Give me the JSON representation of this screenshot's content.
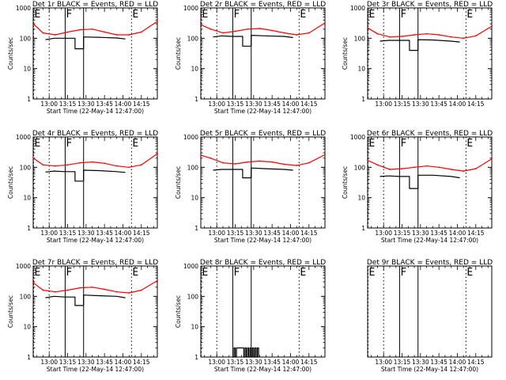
{
  "figure": {
    "colors": {
      "events": "#000000",
      "lld": "#ff0000",
      "axes": "#000000",
      "background": "#ffffff"
    }
  },
  "chart_data": [
    {
      "type": "line",
      "title": "Det 1r BLACK = Events, RED = LLD",
      "xlabel": "Start Time (22-May-14 12:47:00)",
      "ylabel": "Counts/sec",
      "x_range": [
        "12:47:00",
        "14:28:00"
      ],
      "yscale": "log",
      "ylim": [
        1,
        1000
      ],
      "x_ticks": [
        "13:00",
        "13:15",
        "13:30",
        "13:45",
        "14:00",
        "14:15"
      ],
      "y_ticks": [
        "1",
        "10",
        "100",
        "1000"
      ],
      "markers": [
        {
          "label": "E",
          "time": "12:47",
          "style": "dotted"
        },
        {
          "label": "",
          "time": "13:00",
          "style": "dotted"
        },
        {
          "label": "F",
          "time": "13:13",
          "style": "solid"
        },
        {
          "label": "",
          "time": "13:28",
          "style": "solid"
        },
        {
          "label": "E",
          "time": "14:07",
          "style": "dotted"
        }
      ],
      "series": [
        {
          "name": "Events",
          "color": "#000000",
          "x": [
            "12:57",
            "13:04",
            "13:13",
            "13:21",
            "13:21",
            "13:28",
            "13:28",
            "13:40",
            "13:55",
            "14:02"
          ],
          "y": [
            90,
            100,
            100,
            100,
            45,
            45,
            110,
            108,
            102,
            95
          ]
        },
        {
          "name": "LLD",
          "color": "#ff0000",
          "x": [
            "12:47",
            "12:55",
            "13:05",
            "13:15",
            "13:25",
            "13:35",
            "13:45",
            "13:55",
            "14:05",
            "14:15",
            "14:28"
          ],
          "y": [
            300,
            150,
            130,
            160,
            190,
            200,
            160,
            130,
            130,
            160,
            360
          ]
        }
      ]
    },
    {
      "type": "line",
      "title": "Det 2r BLACK = Events, RED = LLD",
      "xlabel": "Start Time (22-May-14 12:47:00)",
      "ylabel": "Counts/sec",
      "x_range": [
        "12:47:00",
        "14:28:00"
      ],
      "yscale": "log",
      "ylim": [
        1,
        1000
      ],
      "x_ticks": [
        "13:00",
        "13:15",
        "13:30",
        "13:45",
        "14:00",
        "14:15"
      ],
      "y_ticks": [
        "1",
        "10",
        "100",
        "1000"
      ],
      "markers": [
        {
          "label": "E",
          "time": "12:47",
          "style": "dotted"
        },
        {
          "label": "",
          "time": "13:00",
          "style": "dotted"
        },
        {
          "label": "F",
          "time": "13:13",
          "style": "solid"
        },
        {
          "label": "",
          "time": "13:28",
          "style": "solid"
        },
        {
          "label": "E",
          "time": "14:07",
          "style": "dotted"
        }
      ],
      "series": [
        {
          "name": "Events",
          "color": "#000000",
          "x": [
            "12:57",
            "13:04",
            "13:13",
            "13:21",
            "13:21",
            "13:28",
            "13:28",
            "13:40",
            "13:55",
            "14:02"
          ],
          "y": [
            110,
            120,
            115,
            115,
            55,
            55,
            125,
            120,
            115,
            105
          ]
        },
        {
          "name": "LLD",
          "color": "#ff0000",
          "x": [
            "12:47",
            "12:55",
            "13:05",
            "13:15",
            "13:25",
            "13:35",
            "13:45",
            "13:55",
            "14:05",
            "14:15",
            "14:28"
          ],
          "y": [
            280,
            200,
            150,
            170,
            200,
            210,
            180,
            150,
            130,
            150,
            320
          ]
        }
      ]
    },
    {
      "type": "line",
      "title": "Det 3r BLACK = Events, RED = LLD",
      "xlabel": "",
      "ylabel": "Counts/sec",
      "x_range": [
        "12:47:00",
        "14:28:00"
      ],
      "yscale": "log",
      "ylim": [
        1,
        1000
      ],
      "x_ticks": [
        "13:00",
        "13:15",
        "13:30",
        "13:45",
        "14:00",
        "14:15"
      ],
      "y_ticks": [
        "1",
        "10",
        "100",
        "1000"
      ],
      "markers": [
        {
          "label": "E",
          "time": "12:47",
          "style": "dotted"
        },
        {
          "label": "",
          "time": "13:00",
          "style": "dotted"
        },
        {
          "label": "F",
          "time": "13:13",
          "style": "solid"
        },
        {
          "label": "",
          "time": "13:28",
          "style": "solid"
        },
        {
          "label": "E",
          "time": "14:07",
          "style": "dotted"
        }
      ],
      "series": [
        {
          "name": "Events",
          "color": "#000000",
          "x": [
            "12:57",
            "13:04",
            "13:13",
            "13:21",
            "13:21",
            "13:28",
            "13:28",
            "13:40",
            "13:55",
            "14:02"
          ],
          "y": [
            80,
            85,
            85,
            85,
            40,
            40,
            90,
            88,
            80,
            75
          ]
        },
        {
          "name": "LLD",
          "color": "#ff0000",
          "x": [
            "12:47",
            "12:55",
            "13:05",
            "13:15",
            "13:25",
            "13:35",
            "13:45",
            "13:55",
            "14:05",
            "14:15",
            "14:28"
          ],
          "y": [
            220,
            140,
            110,
            115,
            130,
            140,
            130,
            110,
            100,
            120,
            250
          ]
        }
      ]
    },
    {
      "type": "line",
      "title": "Det 4r BLACK = Events, RED = LLD",
      "xlabel": "Start Time (22-May-14 12:47:00)",
      "ylabel": "Counts/sec",
      "x_range": [
        "12:47:00",
        "14:28:00"
      ],
      "yscale": "log",
      "ylim": [
        1,
        1000
      ],
      "x_ticks": [
        "13:00",
        "13:15",
        "13:30",
        "13:45",
        "14:00",
        "14:15"
      ],
      "y_ticks": [
        "1",
        "10",
        "100",
        "1000"
      ],
      "markers": [
        {
          "label": "E",
          "time": "12:47",
          "style": "dotted"
        },
        {
          "label": "",
          "time": "13:00",
          "style": "dotted"
        },
        {
          "label": "F",
          "time": "13:13",
          "style": "solid"
        },
        {
          "label": "",
          "time": "13:28",
          "style": "solid"
        },
        {
          "label": "E",
          "time": "14:07",
          "style": "dotted"
        }
      ],
      "series": [
        {
          "name": "Events",
          "color": "#000000",
          "x": [
            "12:57",
            "13:04",
            "13:13",
            "13:21",
            "13:21",
            "13:28",
            "13:28",
            "13:40",
            "13:55",
            "14:02"
          ],
          "y": [
            70,
            75,
            72,
            72,
            35,
            35,
            80,
            78,
            72,
            68
          ]
        },
        {
          "name": "LLD",
          "color": "#ff0000",
          "x": [
            "12:47",
            "12:55",
            "13:05",
            "13:15",
            "13:25",
            "13:35",
            "13:45",
            "13:55",
            "14:05",
            "14:15",
            "14:28"
          ],
          "y": [
            200,
            120,
            110,
            120,
            140,
            150,
            135,
            110,
            100,
            120,
            280
          ]
        }
      ]
    },
    {
      "type": "line",
      "title": "Det 5r BLACK = Events, RED = LLD",
      "xlabel": "Start Time (22-May-14 12:47:00)",
      "ylabel": "Counts/sec",
      "x_range": [
        "12:47:00",
        "14:28:00"
      ],
      "yscale": "log",
      "ylim": [
        1,
        1000
      ],
      "x_ticks": [
        "13:00",
        "13:15",
        "13:30",
        "13:45",
        "14:00",
        "14:15"
      ],
      "y_ticks": [
        "1",
        "10",
        "100",
        "1000"
      ],
      "markers": [
        {
          "label": "",
          "time": "13:00",
          "style": "dotted"
        },
        {
          "label": "",
          "time": "13:13",
          "style": "solid"
        },
        {
          "label": "",
          "time": "13:28",
          "style": "solid"
        },
        {
          "label": "",
          "time": "14:07",
          "style": "dotted"
        }
      ],
      "series": [
        {
          "name": "Events",
          "color": "#000000",
          "x": [
            "12:57",
            "13:04",
            "13:13",
            "13:21",
            "13:21",
            "13:28",
            "13:28",
            "13:40",
            "13:55",
            "14:02"
          ],
          "y": [
            80,
            85,
            85,
            85,
            45,
            45,
            95,
            90,
            85,
            80
          ]
        },
        {
          "name": "LLD",
          "color": "#ff0000",
          "x": [
            "12:47",
            "12:55",
            "13:05",
            "13:15",
            "13:25",
            "13:35",
            "13:45",
            "13:55",
            "14:05",
            "14:15",
            "14:28"
          ],
          "y": [
            250,
            200,
            140,
            130,
            150,
            160,
            150,
            125,
            115,
            140,
            260
          ]
        }
      ]
    },
    {
      "type": "line",
      "title": "Det 6r BLACK = Events, RED = LLD",
      "xlabel": "Start Time (22-May-14 12:47:00)",
      "ylabel": "Counts/sec",
      "x_range": [
        "12:47:00",
        "14:28:00"
      ],
      "yscale": "log",
      "ylim": [
        1,
        1000
      ],
      "x_ticks": [
        "13:00",
        "13:15",
        "13:30",
        "13:45",
        "14:00",
        "14:15"
      ],
      "y_ticks": [
        "1",
        "10",
        "100",
        "1000"
      ],
      "markers": [
        {
          "label": "E",
          "time": "12:47",
          "style": "dotted"
        },
        {
          "label": "",
          "time": "13:00",
          "style": "dotted"
        },
        {
          "label": "F",
          "time": "13:13",
          "style": "solid"
        },
        {
          "label": "",
          "time": "13:28",
          "style": "solid"
        },
        {
          "label": "E",
          "time": "14:07",
          "style": "dotted"
        }
      ],
      "series": [
        {
          "name": "Events",
          "color": "#000000",
          "x": [
            "12:57",
            "13:04",
            "13:13",
            "13:21",
            "13:21",
            "13:28",
            "13:28",
            "13:40",
            "13:55",
            "14:02"
          ],
          "y": [
            50,
            52,
            50,
            50,
            20,
            20,
            55,
            55,
            50,
            45
          ]
        },
        {
          "name": "LLD",
          "color": "#ff0000",
          "x": [
            "12:47",
            "12:55",
            "13:05",
            "13:15",
            "13:25",
            "13:35",
            "13:45",
            "13:55",
            "14:05",
            "14:15",
            "14:28"
          ],
          "y": [
            170,
            120,
            85,
            90,
            100,
            110,
            100,
            85,
            75,
            90,
            190
          ]
        }
      ]
    },
    {
      "type": "line",
      "title": "Det 7r BLACK = Events, RED = LLD",
      "xlabel": "Start Time (22-May-14 12:47:00)",
      "ylabel": "Counts/sec",
      "x_range": [
        "12:47:00",
        "14:28:00"
      ],
      "yscale": "log",
      "ylim": [
        1,
        1000
      ],
      "x_ticks": [
        "13:00",
        "13:15",
        "13:30",
        "13:45",
        "14:00",
        "14:15"
      ],
      "y_ticks": [
        "1",
        "10",
        "100",
        "1000"
      ],
      "markers": [
        {
          "label": "E",
          "time": "12:47",
          "style": "dotted"
        },
        {
          "label": "",
          "time": "13:00",
          "style": "dotted"
        },
        {
          "label": "F",
          "time": "13:13",
          "style": "solid"
        },
        {
          "label": "",
          "time": "13:28",
          "style": "solid"
        },
        {
          "label": "E",
          "time": "14:07",
          "style": "dotted"
        }
      ],
      "series": [
        {
          "name": "Events",
          "color": "#000000",
          "x": [
            "12:57",
            "13:04",
            "13:13",
            "13:21",
            "13:21",
            "13:28",
            "13:28",
            "13:40",
            "13:55",
            "14:02"
          ],
          "y": [
            90,
            100,
            95,
            95,
            50,
            50,
            110,
            105,
            100,
            90
          ]
        },
        {
          "name": "LLD",
          "color": "#ff0000",
          "x": [
            "12:47",
            "12:55",
            "13:05",
            "13:15",
            "13:25",
            "13:35",
            "13:45",
            "13:55",
            "14:05",
            "14:15",
            "14:28"
          ],
          "y": [
            280,
            160,
            140,
            160,
            190,
            200,
            170,
            140,
            130,
            160,
            330
          ]
        }
      ]
    },
    {
      "type": "line",
      "title": "Det 8r BLACK = Events, RED = LLD",
      "xlabel": "Start Time (22-May-14 12:47:00)",
      "ylabel": "Counts/sec",
      "x_range": [
        "12:47:00",
        "14:28:00"
      ],
      "yscale": "log",
      "ylim": [
        1,
        1000
      ],
      "x_ticks": [
        "13:00",
        "13:15",
        "13:30",
        "13:45",
        "14:00",
        "14:15"
      ],
      "y_ticks": [
        "1",
        "10",
        "100",
        "1000"
      ],
      "markers": [
        {
          "label": "E",
          "time": "12:47",
          "style": "dotted"
        },
        {
          "label": "",
          "time": "13:00",
          "style": "dotted"
        },
        {
          "label": "F",
          "time": "13:13",
          "style": "solid"
        },
        {
          "label": "",
          "time": "13:28",
          "style": "solid"
        },
        {
          "label": "E",
          "time": "14:07",
          "style": "dotted"
        }
      ],
      "series": [
        {
          "name": "Events",
          "color": "#000000",
          "x": [
            "13:13",
            "13:14",
            "13:14",
            "13:15",
            "13:15",
            "13:16",
            "13:16",
            "13:22",
            "13:22",
            "13:23",
            "13:23",
            "13:24",
            "13:24",
            "13:25",
            "13:25",
            "13:26",
            "13:26",
            "13:27",
            "13:27",
            "13:28",
            "13:28",
            "13:29",
            "13:29",
            "13:30",
            "13:30",
            "13:31",
            "13:31",
            "13:32",
            "13:32",
            "13:33",
            "13:33",
            "13:34",
            "13:34"
          ],
          "y": [
            1,
            1,
            2,
            2,
            1,
            1,
            2,
            2,
            1,
            1,
            2,
            2,
            1,
            1,
            2,
            2,
            1,
            1,
            2,
            2,
            1,
            1,
            2,
            2,
            1,
            1,
            2,
            2,
            1,
            1,
            2,
            2,
            1
          ]
        }
      ]
    },
    {
      "type": "line",
      "title": "Det 9r BLACK = Events, RED = LLD",
      "xlabel": "Start Time (22-May-14 12:47:00)",
      "ylabel": "",
      "x_range": [
        "12:47:00",
        "14:28:00"
      ],
      "yscale": "log",
      "ylim": [
        1,
        1000
      ],
      "x_ticks": [
        "13:00",
        "13:15",
        "13:30",
        "13:45",
        "14:00",
        "14:15"
      ],
      "y_ticks": [],
      "markers": [
        {
          "label": "E",
          "time": "12:47",
          "style": "dotted"
        },
        {
          "label": "",
          "time": "13:00",
          "style": "dotted"
        },
        {
          "label": "F",
          "time": "13:13",
          "style": "solid"
        },
        {
          "label": "",
          "time": "13:28",
          "style": "solid"
        },
        {
          "label": "E",
          "time": "14:07",
          "style": "dotted"
        }
      ],
      "series": []
    }
  ]
}
